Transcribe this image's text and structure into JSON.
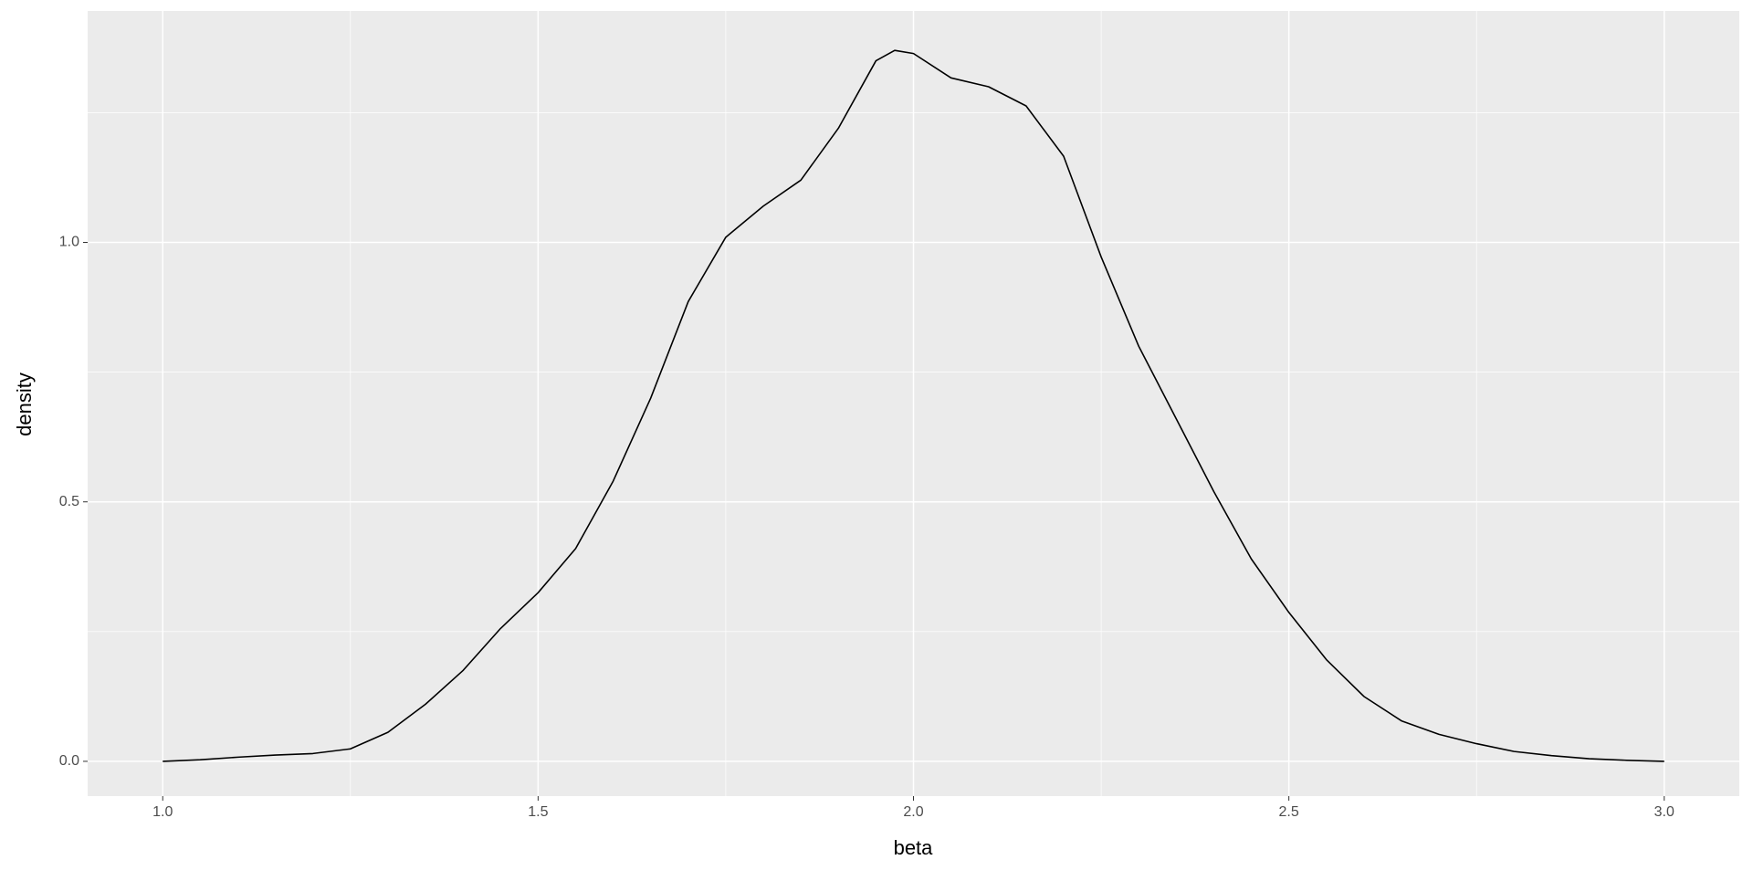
{
  "chart_data": {
    "type": "line",
    "x_label": "beta",
    "y_label": "density",
    "x": [
      1.0,
      1.05,
      1.1,
      1.15,
      1.2,
      1.25,
      1.3,
      1.35,
      1.4,
      1.45,
      1.5,
      1.55,
      1.6,
      1.65,
      1.7,
      1.75,
      1.8,
      1.85,
      1.9,
      1.95,
      1.975,
      2.0,
      2.05,
      2.1,
      2.15,
      2.2,
      2.25,
      2.3,
      2.35,
      2.4,
      2.45,
      2.5,
      2.55,
      2.6,
      2.65,
      2.7,
      2.75,
      2.8,
      2.85,
      2.9,
      2.95,
      3.0
    ],
    "series": [
      {
        "color": "#000000",
        "values": [
          0,
          0.003,
          0.008,
          0.012,
          0.015,
          0.024,
          0.056,
          0.11,
          0.175,
          0.256,
          0.325,
          0.41,
          0.54,
          0.7,
          0.886,
          1.01,
          1.07,
          1.12,
          1.22,
          1.35,
          1.37,
          1.364,
          1.317,
          1.3,
          1.263,
          1.166,
          0.972,
          0.8,
          0.66,
          0.52,
          0.39,
          0.287,
          0.196,
          0.125,
          0.078,
          0.052,
          0.034,
          0.019,
          0.011,
          0.005,
          0.002,
          0
        ]
      }
    ],
    "xlim": [
      0.9,
      3.1
    ],
    "ylim": [
      -0.067,
      1.446
    ],
    "xticks": [
      {
        "value": 1,
        "label": "1.0"
      },
      {
        "value": 1.5,
        "label": "1.5"
      },
      {
        "value": 2,
        "label": "2.0"
      },
      {
        "value": 2.5,
        "label": "2.5"
      },
      {
        "value": 3,
        "label": "3.0"
      }
    ],
    "yticks": [
      {
        "value": 0,
        "label": "0.0"
      },
      {
        "value": 0.5,
        "label": "0.5"
      },
      {
        "value": 1,
        "label": "1.0"
      }
    ],
    "x_minor_ticks": [
      1.25,
      1.75,
      2.25,
      2.75
    ],
    "y_minor_ticks": [
      0.25,
      0.75,
      1.25
    ],
    "grid": true,
    "panel_color": "#ebebeb"
  }
}
